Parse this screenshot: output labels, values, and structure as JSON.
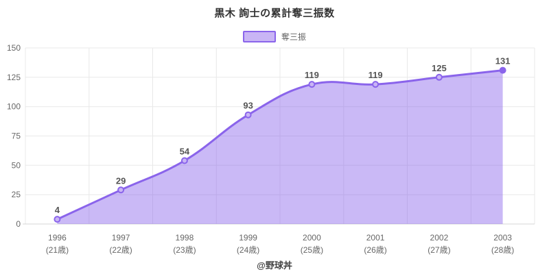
{
  "title": "黒木 詢士の累計奪三振数",
  "legend": {
    "label": "奪三振"
  },
  "footer": "@野球丼",
  "colors": {
    "line": "#8a64eb",
    "area_fill": "rgba(138,100,235,0.45)",
    "marker_fill": "#c9b5f5",
    "last_marker_fill": "#8a64eb",
    "grid": "#e8e8e8",
    "axis_line": "#d5d5d5",
    "tick_text": "#666666",
    "data_label_text": "#555555"
  },
  "chart_data": {
    "type": "area",
    "title": "黒木 詢士の累計奪三振数",
    "series_name": "奪三振",
    "categories": [
      "1996",
      "1997",
      "1998",
      "1999",
      "2000",
      "2001",
      "2002",
      "2003"
    ],
    "categories_sub": [
      "(21歳)",
      "(22歳)",
      "(23歳)",
      "(24歳)",
      "(25歳)",
      "(26歳)",
      "(27歳)",
      "(28歳)"
    ],
    "values": [
      4,
      29,
      54,
      93,
      119,
      119,
      125,
      131
    ],
    "xlabel": "",
    "ylabel": "",
    "ylim": [
      0,
      150
    ],
    "yticks": [
      0,
      25,
      50,
      75,
      100,
      125,
      150
    ],
    "grid": true,
    "smooth": true,
    "data_labels": true,
    "legend_position": "top"
  }
}
